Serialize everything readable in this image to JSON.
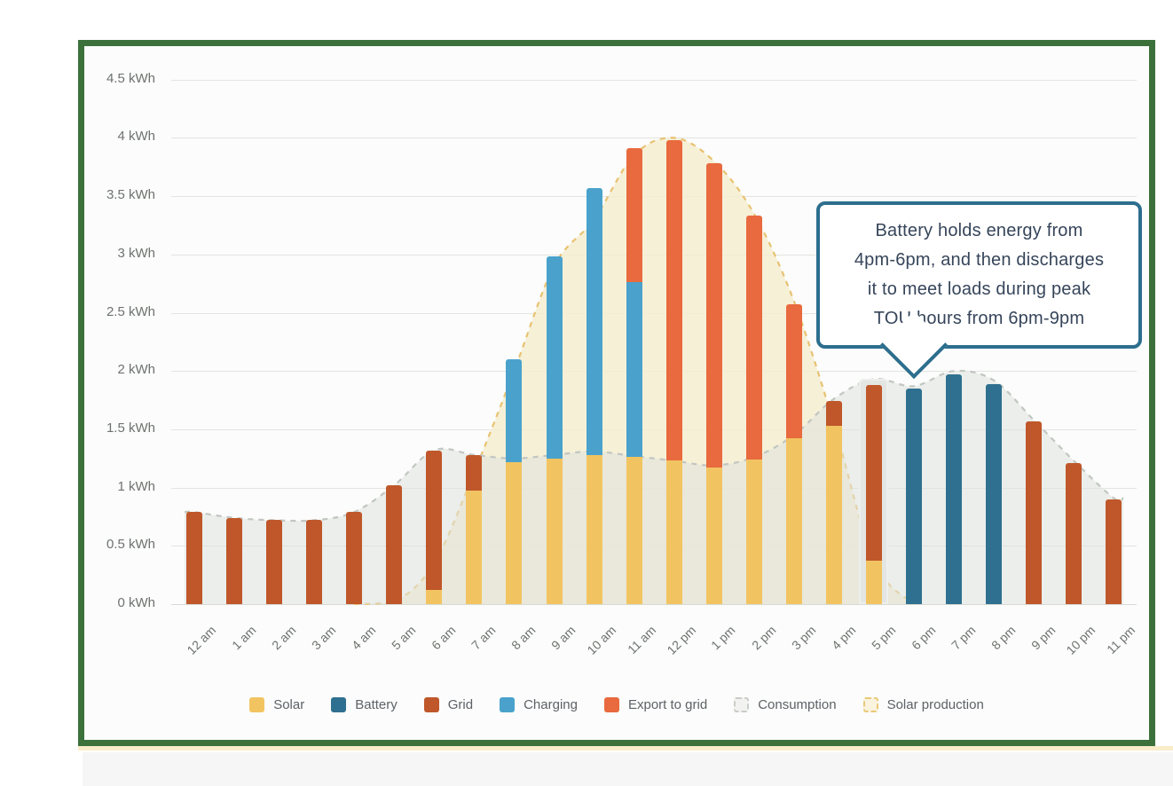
{
  "chart_data": {
    "type": "bar",
    "stacked": true,
    "unit": "kWh",
    "ylim": [
      0,
      4.5
    ],
    "grid": true,
    "legend_position": "bottom",
    "y_ticks": [
      "4.5 kWh",
      "4 kWh",
      "3.5 kWh",
      "3 kWh",
      "2.5 kWh",
      "2 kWh",
      "1.5 kWh",
      "1 kWh",
      "0.5 kWh",
      "0 kWh"
    ],
    "categories": [
      "12 am",
      "1 am",
      "2 am",
      "3 am",
      "4 am",
      "5 am",
      "6 am",
      "7 am",
      "8 am",
      "9 am",
      "10 am",
      "11 am",
      "12 pm",
      "1 pm",
      "2 pm",
      "3 pm",
      "4 pm",
      "5 pm",
      "6 pm",
      "7 pm",
      "8 pm",
      "9 pm",
      "10 pm",
      "11 pm"
    ],
    "series": [
      {
        "name": "Solar",
        "color": "#F2C461",
        "values": [
          0,
          0,
          0,
          0,
          0,
          0,
          0.12,
          0.97,
          1.22,
          1.25,
          1.28,
          1.26,
          1.23,
          1.17,
          1.24,
          1.42,
          1.53,
          0.37,
          0,
          0,
          0,
          0,
          0,
          0
        ]
      },
      {
        "name": "Battery",
        "color": "#2F7090",
        "values": [
          0,
          0,
          0,
          0,
          0,
          0,
          0,
          0,
          0,
          0,
          0,
          0,
          0,
          0,
          0,
          0,
          0,
          0,
          1.85,
          1.97,
          1.89,
          0,
          0,
          0
        ]
      },
      {
        "name": "Charging",
        "color": "#4AA2CC",
        "values": [
          0,
          0,
          0,
          0,
          0,
          0,
          0,
          0,
          0.88,
          1.73,
          2.29,
          1.5,
          0,
          0,
          0,
          0,
          0,
          0,
          0,
          0,
          0,
          0,
          0,
          0
        ]
      },
      {
        "name": "Export to grid",
        "color": "#E86A3E",
        "values": [
          0,
          0,
          0,
          0,
          0,
          0,
          0,
          0,
          0,
          0,
          0,
          1.15,
          2.75,
          2.61,
          2.09,
          1.15,
          0,
          0,
          0,
          0,
          0,
          0,
          0,
          0
        ]
      },
      {
        "name": "Grid",
        "color": "#BF572A",
        "values": [
          0.79,
          0.74,
          0.72,
          0.72,
          0.79,
          1.02,
          1.2,
          0.31,
          0,
          0,
          0,
          0,
          0,
          0,
          0,
          0,
          0.21,
          1.51,
          0,
          0,
          0,
          1.57,
          1.21,
          0.9
        ]
      }
    ],
    "areas": [
      {
        "name": "Solar production",
        "fill": "rgba(245,236,206,0.8)",
        "stroke": "#E8C272",
        "values": [
          0,
          0,
          0,
          0,
          0,
          0.02,
          0.35,
          1.13,
          2.0,
          2.9,
          3.3,
          3.85,
          4.0,
          3.8,
          3.35,
          2.6,
          1.55,
          0.37,
          0,
          0,
          0,
          0,
          0,
          0
        ]
      },
      {
        "name": "Consumption",
        "fill": "rgba(222,225,221,0.55)",
        "stroke": "#C2C6C1",
        "values": [
          0.79,
          0.74,
          0.72,
          0.72,
          0.79,
          1.02,
          1.32,
          1.28,
          1.25,
          1.28,
          1.31,
          1.27,
          1.23,
          1.19,
          1.26,
          1.45,
          1.76,
          1.93,
          1.87,
          2.0,
          1.92,
          1.58,
          1.23,
          0.91
        ]
      }
    ],
    "highlight": {
      "category": "5 pm",
      "hour_index": 17,
      "value": 1.93
    },
    "legend": [
      {
        "label": "Solar",
        "type": "solid",
        "color": "#F2C461"
      },
      {
        "label": "Battery",
        "type": "solid",
        "color": "#2F7090"
      },
      {
        "label": "Grid",
        "type": "solid",
        "color": "#BF572A"
      },
      {
        "label": "Charging",
        "type": "solid",
        "color": "#4AA2CC"
      },
      {
        "label": "Export to grid",
        "type": "solid",
        "color": "#E86A3E"
      },
      {
        "label": "Consumption",
        "type": "dashed",
        "fill": "#F2F3F1",
        "border": "#C9CCC7"
      },
      {
        "label": "Solar production",
        "type": "dashed",
        "fill": "#FAF3DE",
        "border": "#E9C878"
      }
    ]
  },
  "callout": {
    "lines": [
      "Battery holds energy from",
      "4pm-6pm, and then discharges",
      "it to meet loads during peak",
      "TOU hours from 6pm-9pm"
    ],
    "border_color": "#2D6E8E",
    "points_to": "6 pm"
  },
  "frame": {
    "border_color": "#3C713C"
  }
}
